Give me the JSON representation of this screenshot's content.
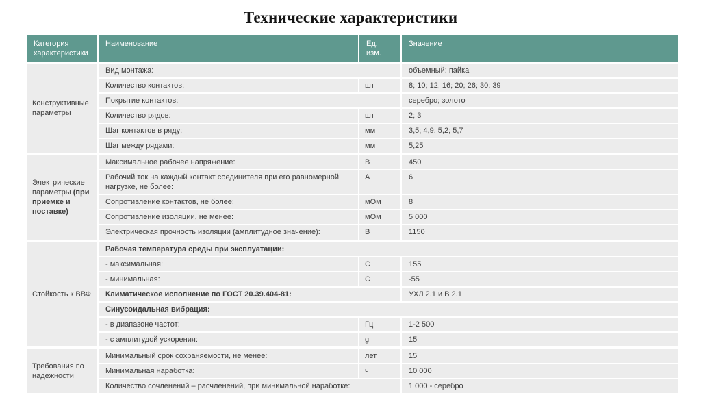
{
  "page": {
    "title": "Технические характеристики"
  },
  "theme": {
    "header_bg": "#5f998f",
    "header_text": "#ffffff",
    "row_bg": "#ececec",
    "body_text": "#3f3f3f",
    "page_bg": "#ffffff"
  },
  "table": {
    "columns": [
      "Категория характеристики",
      "Наименование",
      "Ед. изм.",
      "Значение"
    ],
    "groups": [
      {
        "category": "Конструктивные параметры",
        "category_bold": "",
        "rows": [
          {
            "type": "merged",
            "name": "Вид монтажа:",
            "unit": "",
            "value": "объемный: пайка"
          },
          {
            "type": "normal",
            "name": "Количество контактов:",
            "unit": "шт",
            "value": "8; 10; 12; 16; 20; 26; 30; 39"
          },
          {
            "type": "merged",
            "name": "Покрытие контактов:",
            "unit": "",
            "value": "серебро; золото"
          },
          {
            "type": "normal",
            "name": "Количество рядов:",
            "unit": "шт",
            "value": "2; 3"
          },
          {
            "type": "normal",
            "name": "Шаг контактов в ряду:",
            "unit": "мм",
            "value": "3,5; 4,9; 5,2; 5,7"
          },
          {
            "type": "normal",
            "name": "Шаг между рядами:",
            "unit": "мм",
            "value": "5,25"
          }
        ]
      },
      {
        "category": "Электрические параметры ",
        "category_bold": "(при приемке и поставке)",
        "rows": [
          {
            "type": "normal",
            "name": "Максимальное рабочее напряжение:",
            "unit": "В",
            "value": "450"
          },
          {
            "type": "normal",
            "name": "Рабочий ток на каждый контакт соединителя при его равномерной нагрузке, не более:",
            "unit": "А",
            "value": "6"
          },
          {
            "type": "normal",
            "name": "Сопротивление контактов, не более:",
            "unit": "мОм",
            "value": "8"
          },
          {
            "type": "normal",
            "name": "Сопротивление изоляции, не менее:",
            "unit": "мОм",
            "value": "5 000"
          },
          {
            "type": "normal",
            "name": "Электрическая прочность изоляции (амплитудное значение):",
            "unit": "В",
            "value": "1150"
          }
        ]
      },
      {
        "category": "Стойкость к ВВФ",
        "category_bold": "",
        "rows": [
          {
            "type": "section",
            "name": "Рабочая температура среды при эксплуатации:",
            "unit": "",
            "value": ""
          },
          {
            "type": "normal",
            "name": "- максимальная:",
            "unit": "С",
            "value": "155"
          },
          {
            "type": "normal",
            "name": "- минимальная:",
            "unit": "С",
            "value": "-55"
          },
          {
            "type": "merged",
            "bold": true,
            "name": "Климатическое исполнение по ГОСТ 20.39.404-81:",
            "unit": "",
            "value": "УХЛ 2.1 и В 2.1"
          },
          {
            "type": "section",
            "name": "Синусоидальная вибрация:",
            "unit": "",
            "value": ""
          },
          {
            "type": "normal",
            "name": "- в диапазоне частот:",
            "unit": "Гц",
            "value": "1-2 500"
          },
          {
            "type": "normal",
            "name": "- с амплитудой ускорения:",
            "unit": "g",
            "value": "15"
          }
        ]
      },
      {
        "category": "Требования по надежности",
        "category_bold": "",
        "rows": [
          {
            "type": "normal",
            "name": "Минимальный срок сохраняемости, не менее:",
            "unit": "лет",
            "value": "15"
          },
          {
            "type": "normal",
            "name": "Минимальная наработка:",
            "unit": "ч",
            "value": "10 000"
          },
          {
            "type": "merged",
            "name": "Количество сочленений – расчленений, при минимальной наработке:",
            "unit": "",
            "value": "1 000 - серебро"
          }
        ]
      }
    ]
  }
}
